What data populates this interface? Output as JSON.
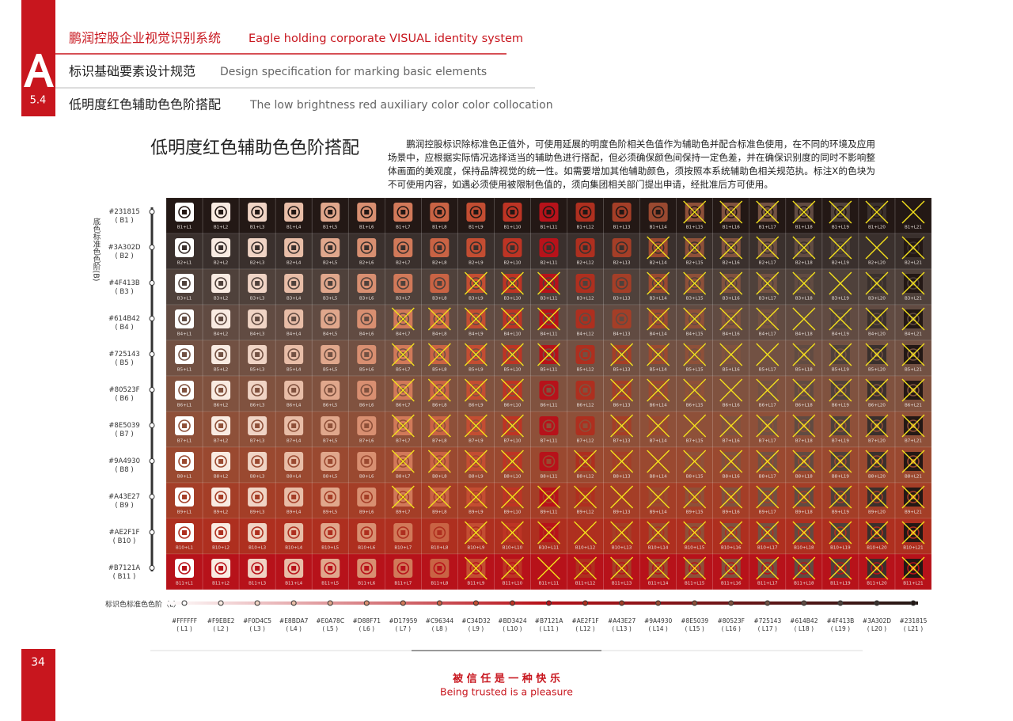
{
  "header": {
    "title_cn": "鹏润控股企业视觉识别系统",
    "title_en": "Eagle holding corporate VISUAL identity system",
    "section_letter": "A",
    "section_number": "5.4",
    "subtitle_cn": "标识基础要素设计规范",
    "subtitle_en": "Design specification for marking basic elements",
    "topic_cn": "低明度红色辅助色色阶搭配",
    "topic_en": "The low brightness red auxiliary color color collocation"
  },
  "heading": "低明度红色辅助色色阶搭配",
  "description": "鹏润控股标识除标准色正值外，可使用延展的明度色阶相关色值作为辅助色并配合标准色使用，在不同的环境及应用场景中，应根据实际情况选择适当的辅助色进行搭配，但必须确保颜色间保持一定色差，并在确保识别度的同时不影响整体画面的美观度，保持品牌视觉的统一性。如需要增加其他辅助颜色，须按照本系统辅助色相关规范执。标注X的色块为不可使用内容，如遇必须使用被限制色值的，须向集团相关部门提出申请，经批准后方可使用。",
  "row_axis_label": "底色标准色色阶(B)",
  "column_axis_label": "标识色标准色色阶（L）",
  "columns": [
    {
      "code": "#FFFFFF",
      "name": "( L1 )"
    },
    {
      "code": "#F9EBE2",
      "name": "( L2 )"
    },
    {
      "code": "#F0D4C5",
      "name": "( L3 )"
    },
    {
      "code": "#E8BDA7",
      "name": "( L4 )"
    },
    {
      "code": "#E0A78C",
      "name": "( L5 )"
    },
    {
      "code": "#D88F71",
      "name": "( L6 )"
    },
    {
      "code": "#D17959",
      "name": "( L7 )"
    },
    {
      "code": "#C96344",
      "name": "( L8 )"
    },
    {
      "code": "#C34D32",
      "name": "( L9 )"
    },
    {
      "code": "#BD3424",
      "name": "( L10 )"
    },
    {
      "code": "#B7121A",
      "name": "( L11 )"
    },
    {
      "code": "#AE2F1F",
      "name": "( L12 )"
    },
    {
      "code": "#A43E27",
      "name": "( L13 )"
    },
    {
      "code": "#9A4930",
      "name": "( L14 )"
    },
    {
      "code": "#8E5039",
      "name": "( L15 )"
    },
    {
      "code": "#80523F",
      "name": "( L16 )"
    },
    {
      "code": "#725143",
      "name": "( L17 )"
    },
    {
      "code": "#614B42",
      "name": "( L18 )"
    },
    {
      "code": "#4F413B",
      "name": "( L19 )"
    },
    {
      "code": "#3A302D",
      "name": "( L20 )"
    },
    {
      "code": "#231815",
      "name": "( L21 )"
    }
  ],
  "rows": [
    {
      "code": "#231815",
      "name": "( B1 )",
      "cells": [
        "B1+L1",
        "B1+L2",
        "B1+L3",
        "B1+L4",
        "B1+L5",
        "B1+L6",
        "B1+L7",
        "B1+L8",
        "B1+L9",
        "B1+L10",
        "B1+L11",
        "B1+L12",
        "B1+L13",
        "B1+L14",
        "B1+L15",
        "B1+L16",
        "B1+L17",
        "B1+L18",
        "B1+L19",
        "B1+L20",
        "B1+L21"
      ],
      "crossed": [
        false,
        false,
        false,
        false,
        false,
        false,
        false,
        false,
        false,
        false,
        false,
        false,
        false,
        false,
        true,
        true,
        true,
        true,
        true,
        true,
        true
      ]
    },
    {
      "code": "#3A302D",
      "name": "( B2 )",
      "cells": [
        "B2+L1",
        "B2+L2",
        "B2+L3",
        "B2+L4",
        "B2+L5",
        "B2+L6",
        "B2+L7",
        "B2+L8",
        "B2+L9",
        "B2+L10",
        "B2+L11",
        "B2+L12",
        "B2+L13",
        "B2+L14",
        "B2+L15",
        "B2+L16",
        "B2+L17",
        "B2+L18",
        "B2+L19",
        "B2+L20",
        "B2+L21"
      ],
      "crossed": [
        false,
        false,
        false,
        false,
        false,
        false,
        false,
        false,
        false,
        false,
        false,
        false,
        false,
        true,
        true,
        true,
        true,
        true,
        true,
        true,
        true
      ]
    },
    {
      "code": "#4F413B",
      "name": "( B3 )",
      "cells": [
        "B3+L1",
        "B3+L2",
        "B3+L3",
        "B3+L4",
        "B3+L5",
        "B3+L6",
        "B3+L7",
        "B3+L8",
        "B3+L9",
        "B3+L10",
        "B3+L11",
        "B3+L12",
        "B3+L13",
        "B3+L14",
        "B3+L15",
        "B3+L16",
        "B3+L17",
        "B3+L18",
        "B3+L19",
        "B3+L20",
        "B3+L21"
      ],
      "crossed": [
        false,
        false,
        false,
        false,
        false,
        false,
        false,
        false,
        true,
        true,
        true,
        false,
        false,
        true,
        true,
        true,
        true,
        true,
        true,
        true,
        true
      ]
    },
    {
      "code": "#614B42",
      "name": "( B4 )",
      "cells": [
        "B4+L1",
        "B4+L2",
        "B4+L3",
        "B4+L4",
        "B4+L5",
        "B4+L6",
        "B4+L7",
        "B4+L8",
        "B4+L9",
        "B4+L10",
        "B4+L11",
        "B4+L12",
        "B4+L13",
        "B4+L14",
        "B4+L15",
        "B4+L16",
        "B4+L17",
        "B4+L18",
        "B4+L19",
        "B4+L20",
        "B4+L21"
      ],
      "crossed": [
        false,
        false,
        false,
        false,
        false,
        false,
        true,
        true,
        true,
        true,
        true,
        false,
        false,
        true,
        true,
        true,
        true,
        true,
        true,
        true,
        true
      ]
    },
    {
      "code": "#725143",
      "name": "( B5 )",
      "cells": [
        "B5+L1",
        "B5+L2",
        "B5+L3",
        "B5+L4",
        "B5+L5",
        "B5+L6",
        "B5+L7",
        "B5+L8",
        "B5+L9",
        "B5+L10",
        "B5+L11",
        "B5+L12",
        "B5+L13",
        "B5+L14",
        "B5+L15",
        "B5+L16",
        "B5+L17",
        "B5+L18",
        "B5+L19",
        "B5+L20",
        "B5+L21"
      ],
      "crossed": [
        false,
        false,
        false,
        false,
        false,
        false,
        true,
        true,
        true,
        true,
        true,
        false,
        true,
        true,
        true,
        true,
        true,
        true,
        true,
        true,
        true
      ]
    },
    {
      "code": "#80523F",
      "name": "( B6 )",
      "cells": [
        "B6+L1",
        "B6+L2",
        "B6+L3",
        "B6+L4",
        "B6+L5",
        "B6+L6",
        "B6+L7",
        "B6+L8",
        "B6+L9",
        "B6+L10",
        "B6+L11",
        "B6+L12",
        "B6+L13",
        "B6+L14",
        "B6+L15",
        "B6+L16",
        "B6+L17",
        "B6+L18",
        "B6+L19",
        "B6+L20",
        "B6+L21"
      ],
      "crossed": [
        false,
        false,
        false,
        false,
        false,
        false,
        true,
        true,
        true,
        true,
        false,
        false,
        true,
        true,
        true,
        true,
        true,
        true,
        true,
        true,
        true
      ]
    },
    {
      "code": "#8E5039",
      "name": "( B7 )",
      "cells": [
        "B7+L1",
        "B7+L2",
        "B7+L3",
        "B7+L4",
        "B7+L5",
        "B7+L6",
        "B7+L7",
        "B7+L8",
        "B7+L9",
        "B7+L10",
        "B7+L11",
        "B7+L12",
        "B7+L13",
        "B7+L14",
        "B7+L15",
        "B7+L16",
        "B7+L17",
        "B7+L18",
        "B7+L19",
        "B7+L20",
        "B7+L21"
      ],
      "crossed": [
        false,
        false,
        false,
        false,
        false,
        false,
        true,
        true,
        true,
        true,
        false,
        false,
        true,
        true,
        true,
        true,
        true,
        true,
        true,
        true,
        true
      ]
    },
    {
      "code": "#9A4930",
      "name": "( B8 )",
      "cells": [
        "B8+L1",
        "B8+L2",
        "B8+L3",
        "B8+L4",
        "B8+L5",
        "B8+L6",
        "B8+L7",
        "B8+L8",
        "B8+L9",
        "B8+L10",
        "B8+L11",
        "B8+L12",
        "B8+L13",
        "B8+L14",
        "B8+L15",
        "B8+L16",
        "B8+L17",
        "B8+L18",
        "B8+L19",
        "B8+L20",
        "B8+L21"
      ],
      "crossed": [
        false,
        false,
        false,
        false,
        false,
        false,
        true,
        true,
        true,
        true,
        false,
        true,
        true,
        true,
        true,
        true,
        true,
        true,
        true,
        true,
        true
      ]
    },
    {
      "code": "#A43E27",
      "name": "( B9 )",
      "cells": [
        "B9+L1",
        "B9+L2",
        "B9+L3",
        "B9+L4",
        "B9+L5",
        "B9+L6",
        "B9+L7",
        "B9+L8",
        "B9+L9",
        "B9+L10",
        "B9+L11",
        "B9+L12",
        "B9+L13",
        "B9+L14",
        "B9+L15",
        "B9+L16",
        "B9+L17",
        "B9+L18",
        "B9+L19",
        "B9+L20",
        "B9+L21"
      ],
      "crossed": [
        false,
        false,
        false,
        false,
        false,
        false,
        true,
        true,
        true,
        true,
        true,
        true,
        true,
        true,
        true,
        true,
        true,
        true,
        true,
        true,
        true
      ]
    },
    {
      "code": "#AE2F1F",
      "name": "( B10 )",
      "cells": [
        "B10+L1",
        "B10+L2",
        "B10+L3",
        "B10+L4",
        "B10+L5",
        "B10+L6",
        "B10+L7",
        "B10+L8",
        "B10+L9",
        "B10+L10",
        "B10+L11",
        "B10+L12",
        "B10+L13",
        "B10+L14",
        "B10+L15",
        "B10+L16",
        "B10+L17",
        "B10+L18",
        "B10+L19",
        "B10+L20",
        "B10+L21"
      ],
      "crossed": [
        false,
        false,
        false,
        false,
        false,
        false,
        false,
        false,
        true,
        true,
        true,
        true,
        true,
        true,
        true,
        true,
        true,
        true,
        true,
        true,
        true
      ]
    },
    {
      "code": "#B7121A",
      "name": "( B11 )",
      "cells": [
        "B11+L1",
        "B11+L2",
        "B11+L3",
        "B11+L4",
        "B11+L5",
        "B11+L6",
        "B11+L7",
        "B11+L8",
        "B11+L9",
        "B11+L10",
        "B11+L11",
        "B11+L12",
        "B11+L13",
        "B11+L14",
        "B11+L15",
        "B11+L16",
        "B11+L17",
        "B11+L18",
        "B11+L19",
        "B11+L20",
        "B11+L21"
      ],
      "crossed": [
        false,
        false,
        false,
        false,
        false,
        false,
        false,
        false,
        true,
        true,
        true,
        true,
        true,
        true,
        true,
        true,
        true,
        true,
        true,
        true,
        true
      ]
    }
  ],
  "page_number": "34",
  "footer": {
    "slogan_cn": "被 信 任 是 一 种 快 乐",
    "slogan_en": "Being trusted is a pleasure"
  }
}
